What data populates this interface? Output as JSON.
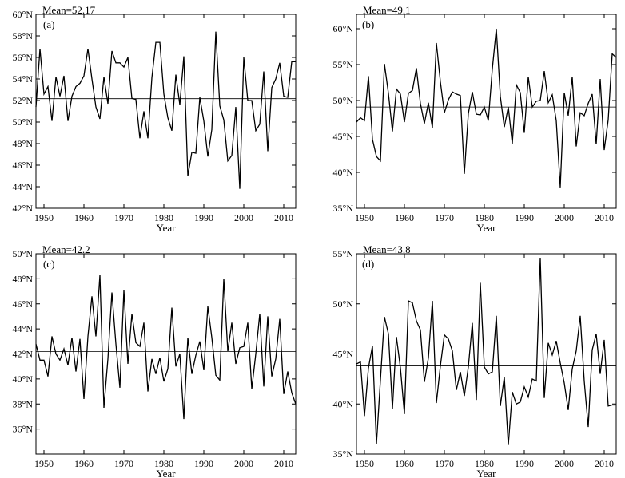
{
  "chart_data": [
    {
      "type": "line",
      "panel_label": "(a)",
      "mean_label": "Mean=52.17",
      "mean": 52.17,
      "xlabel": "Year",
      "xlim": [
        1948,
        2013
      ],
      "xticks": [
        1950,
        1960,
        1970,
        1980,
        1990,
        2000,
        2010
      ],
      "xtick_labels": [
        "1950",
        "1960",
        "1970",
        "1980",
        "1990",
        "2000",
        "2010"
      ],
      "ylim": [
        42,
        60
      ],
      "yticks": [
        42,
        44,
        46,
        48,
        50,
        52,
        54,
        56,
        58,
        60
      ],
      "ytick_labels": [
        "42°N",
        "44°N",
        "46°N",
        "48°N",
        "50°N",
        "52°N",
        "54°N",
        "56°N",
        "58°N",
        "60°N"
      ],
      "x": [
        1948,
        1949,
        1950,
        1951,
        1952,
        1953,
        1954,
        1955,
        1956,
        1957,
        1958,
        1959,
        1960,
        1961,
        1962,
        1963,
        1964,
        1965,
        1966,
        1967,
        1968,
        1969,
        1970,
        1971,
        1972,
        1973,
        1974,
        1975,
        1976,
        1977,
        1978,
        1979,
        1980,
        1981,
        1982,
        1983,
        1984,
        1985,
        1986,
        1987,
        1988,
        1989,
        1990,
        1991,
        1992,
        1993,
        1994,
        1995,
        1996,
        1997,
        1998,
        1999,
        2000,
        2001,
        2002,
        2003,
        2004,
        2005,
        2006,
        2007,
        2008,
        2009,
        2010,
        2011,
        2012,
        2013
      ],
      "values": [
        51.4,
        56.8,
        52.6,
        53.3,
        50.1,
        54.2,
        52.4,
        54.3,
        50.1,
        52.4,
        53.3,
        53.6,
        54.3,
        56.8,
        54.0,
        51.4,
        50.3,
        54.2,
        51.7,
        56.6,
        55.5,
        55.5,
        55.1,
        56.0,
        52.2,
        52.1,
        48.5,
        51.0,
        48.5,
        54.1,
        57.4,
        57.4,
        52.6,
        50.4,
        49.2,
        54.4,
        51.6,
        56.1,
        45.0,
        47.2,
        47.1,
        52.3,
        50.1,
        46.8,
        49.3,
        58.4,
        51.5,
        50.2,
        46.4,
        46.9,
        51.4,
        43.8,
        56.0,
        52.0,
        52.0,
        49.2,
        49.8,
        54.7,
        47.3,
        53.2,
        54.0,
        55.5,
        52.4,
        52.3,
        55.6,
        55.6
      ]
    },
    {
      "type": "line",
      "panel_label": "(b)",
      "mean_label": "Mean=49.1",
      "mean": 49.1,
      "xlabel": "Year",
      "xlim": [
        1948,
        2013
      ],
      "xticks": [
        1950,
        1960,
        1970,
        1980,
        1990,
        2000,
        2010
      ],
      "xtick_labels": [
        "1950",
        "1960",
        "1970",
        "1980",
        "1990",
        "2000",
        "2010"
      ],
      "ylim": [
        35,
        62
      ],
      "yticks": [
        35,
        40,
        45,
        50,
        55,
        60
      ],
      "ytick_labels": [
        "35°N",
        "40°N",
        "45°N",
        "50°N",
        "55°N",
        "60°N"
      ],
      "x": [
        1948,
        1949,
        1950,
        1951,
        1952,
        1953,
        1954,
        1955,
        1956,
        1957,
        1958,
        1959,
        1960,
        1961,
        1962,
        1963,
        1964,
        1965,
        1966,
        1967,
        1968,
        1969,
        1970,
        1971,
        1972,
        1973,
        1974,
        1975,
        1976,
        1977,
        1978,
        1979,
        1980,
        1981,
        1982,
        1983,
        1984,
        1985,
        1986,
        1987,
        1988,
        1989,
        1990,
        1991,
        1992,
        1993,
        1994,
        1995,
        1996,
        1997,
        1998,
        1999,
        2000,
        2001,
        2002,
        2003,
        2004,
        2005,
        2006,
        2007,
        2008,
        2009,
        2010,
        2011,
        2012,
        2013
      ],
      "values": [
        47.0,
        47.6,
        47.2,
        53.4,
        44.6,
        42.2,
        41.6,
        55.1,
        51.0,
        45.7,
        51.6,
        50.9,
        47.0,
        51.0,
        51.4,
        54.5,
        49.6,
        46.8,
        49.7,
        46.2,
        58.0,
        52.6,
        48.3,
        50.1,
        51.2,
        50.9,
        50.7,
        39.8,
        48.2,
        51.2,
        48.1,
        48.0,
        49.1,
        47.2,
        54.4,
        60.0,
        50.6,
        46.3,
        49.1,
        44.0,
        52.2,
        51.1,
        45.5,
        53.3,
        49.1,
        49.9,
        50.0,
        54.1,
        49.7,
        50.8,
        47.2,
        37.9,
        51.1,
        47.9,
        53.3,
        43.6,
        48.3,
        47.9,
        49.6,
        50.9,
        43.9,
        53.0,
        43.1,
        47.3,
        56.5,
        56.0
      ]
    },
    {
      "type": "line",
      "panel_label": "(c)",
      "mean_label": "Mean=42.2",
      "mean": 42.2,
      "xlabel": "Year",
      "xlim": [
        1948,
        2013
      ],
      "xticks": [
        1950,
        1960,
        1970,
        1980,
        1990,
        2000,
        2010
      ],
      "xtick_labels": [
        "1950",
        "1960",
        "1970",
        "1980",
        "1990",
        "2000",
        "2010"
      ],
      "ylim": [
        34,
        50
      ],
      "yticks": [
        36,
        38,
        40,
        42,
        44,
        46,
        48,
        50
      ],
      "ytick_labels": [
        "36°N",
        "38°N",
        "40°N",
        "42°N",
        "44°N",
        "46°N",
        "48°N",
        "50°N"
      ],
      "x": [
        1948,
        1949,
        1950,
        1951,
        1952,
        1953,
        1954,
        1955,
        1956,
        1957,
        1958,
        1959,
        1960,
        1961,
        1962,
        1963,
        1964,
        1965,
        1966,
        1967,
        1968,
        1969,
        1970,
        1971,
        1972,
        1973,
        1974,
        1975,
        1976,
        1977,
        1978,
        1979,
        1980,
        1981,
        1982,
        1983,
        1984,
        1985,
        1986,
        1987,
        1988,
        1989,
        1990,
        1991,
        1992,
        1993,
        1994,
        1995,
        1996,
        1997,
        1998,
        1999,
        2000,
        2001,
        2002,
        2003,
        2004,
        2005,
        2006,
        2007,
        2008,
        2009,
        2010,
        2011,
        2012,
        2013
      ],
      "values": [
        42.8,
        41.5,
        41.5,
        40.2,
        43.4,
        42.0,
        41.5,
        42.4,
        41.1,
        43.3,
        40.6,
        43.2,
        38.4,
        43.4,
        46.6,
        43.4,
        48.3,
        37.7,
        41.6,
        46.9,
        42.8,
        39.3,
        47.1,
        41.2,
        45.2,
        42.9,
        42.6,
        44.5,
        39.0,
        41.6,
        40.4,
        41.7,
        39.8,
        40.8,
        45.7,
        41.0,
        42.0,
        36.8,
        43.3,
        40.4,
        41.9,
        43.0,
        40.7,
        45.8,
        43.3,
        40.3,
        39.9,
        48.0,
        42.2,
        44.5,
        41.2,
        42.5,
        42.6,
        44.5,
        39.2,
        42.0,
        45.2,
        39.4,
        45.0,
        40.2,
        41.6,
        44.8,
        38.8,
        40.6,
        38.9,
        38.0
      ]
    },
    {
      "type": "line",
      "panel_label": "(d)",
      "mean_label": "Mean=43.8",
      "mean": 43.8,
      "xlabel": "Year",
      "xlim": [
        1948,
        2013
      ],
      "xticks": [
        1950,
        1960,
        1970,
        1980,
        1990,
        2000,
        2010
      ],
      "xtick_labels": [
        "1950",
        "1960",
        "1970",
        "1980",
        "1990",
        "2000",
        "2010"
      ],
      "ylim": [
        35,
        55
      ],
      "yticks": [
        35,
        40,
        45,
        50,
        55
      ],
      "ytick_labels": [
        "35°N",
        "40°N",
        "45°N",
        "50°N",
        "55°N"
      ],
      "x": [
        1948,
        1949,
        1950,
        1951,
        1952,
        1953,
        1954,
        1955,
        1956,
        1957,
        1958,
        1959,
        1960,
        1961,
        1962,
        1963,
        1964,
        1965,
        1966,
        1967,
        1968,
        1969,
        1970,
        1971,
        1972,
        1973,
        1974,
        1975,
        1976,
        1977,
        1978,
        1979,
        1980,
        1981,
        1982,
        1983,
        1984,
        1985,
        1986,
        1987,
        1988,
        1989,
        1990,
        1991,
        1992,
        1993,
        1994,
        1995,
        1996,
        1997,
        1998,
        1999,
        2000,
        2001,
        2002,
        2003,
        2004,
        2005,
        2006,
        2007,
        2008,
        2009,
        2010,
        2011,
        2012,
        2013
      ],
      "values": [
        44.0,
        44.2,
        38.8,
        43.6,
        45.8,
        36.0,
        42.4,
        48.7,
        47.0,
        39.5,
        46.7,
        43.6,
        39.0,
        50.3,
        50.1,
        48.3,
        47.4,
        42.2,
        44.6,
        50.3,
        40.1,
        43.8,
        46.9,
        46.5,
        45.3,
        41.4,
        43.2,
        40.8,
        43.7,
        48.1,
        40.4,
        52.1,
        43.7,
        43.0,
        43.2,
        48.8,
        39.8,
        42.7,
        35.9,
        41.2,
        40.0,
        40.2,
        41.7,
        40.7,
        42.5,
        42.3,
        54.6,
        40.6,
        46.1,
        44.9,
        46.3,
        44.1,
        42.1,
        39.4,
        43.5,
        45.3,
        48.8,
        42.3,
        37.7,
        45.4,
        47.0,
        43.0,
        46.4,
        39.8,
        39.9,
        39.9
      ]
    }
  ]
}
